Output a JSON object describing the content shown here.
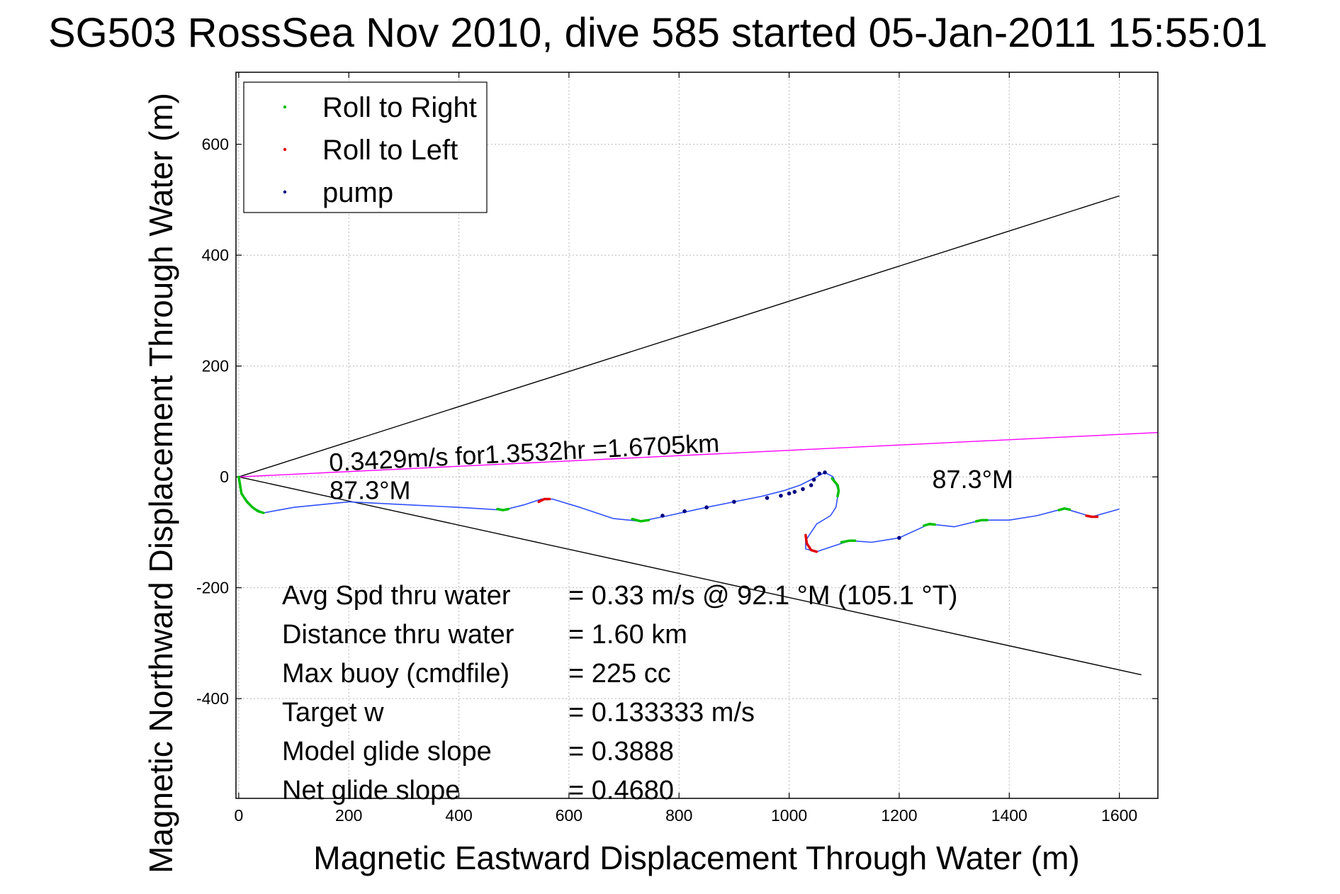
{
  "chart_data": {
    "type": "line",
    "title": "SG503 RossSea Nov 2010, dive 585 started 05-Jan-2011 15:55:01",
    "xlabel": "Magnetic Eastward Displacement Through Water (m)",
    "ylabel": "Magnetic Northward Displacement Through Water (m)",
    "xlim": [
      -5,
      1670
    ],
    "ylim": [
      -580,
      730
    ],
    "xticks": [
      0,
      200,
      400,
      600,
      800,
      1000,
      1200,
      1400,
      1600
    ],
    "yticks": [
      -400,
      -200,
      0,
      200,
      400,
      600
    ],
    "grid": true,
    "legend": {
      "placement": "top-left",
      "entries": [
        {
          "name": "Roll to Right",
          "color": "#00c000"
        },
        {
          "name": "Roll to Left",
          "color": "#e00000"
        },
        {
          "name": "pump",
          "color": "#000080"
        }
      ]
    },
    "track": {
      "color": "#3050ff",
      "x": [
        0,
        5,
        25,
        45,
        100,
        200,
        300,
        400,
        480,
        520,
        550,
        570,
        620,
        680,
        730,
        780,
        850,
        900,
        950,
        990,
        1020,
        1050,
        1065,
        1080,
        1090,
        1085,
        1075,
        1050,
        1030,
        1030,
        1050,
        1080,
        1110,
        1150,
        1200,
        1255,
        1300,
        1350,
        1400,
        1450,
        1500,
        1550,
        1600
      ],
      "y": [
        0,
        -30,
        -55,
        -65,
        -55,
        -45,
        -50,
        -55,
        -60,
        -50,
        -40,
        -40,
        -55,
        -75,
        -80,
        -70,
        -55,
        -45,
        -35,
        -25,
        -15,
        0,
        8,
        0,
        -25,
        -55,
        -70,
        -85,
        -115,
        -130,
        -135,
        -125,
        -115,
        -118,
        -110,
        -85,
        -90,
        -78,
        -78,
        -70,
        -57,
        -72,
        -58
      ]
    },
    "roll_right": {
      "color": "#00c000",
      "segments": [
        {
          "x": [
            0,
            5,
            15,
            25,
            35,
            45
          ],
          "y": [
            0,
            -30,
            -45,
            -55,
            -62,
            -65
          ]
        },
        {
          "x": [
            470,
            480,
            490
          ],
          "y": [
            -58,
            -60,
            -58
          ]
        },
        {
          "x": [
            715,
            730,
            745
          ],
          "y": [
            -76,
            -80,
            -78
          ]
        },
        {
          "x": [
            1078,
            1088,
            1090,
            1088
          ],
          "y": [
            -3,
            -15,
            -25,
            -35
          ]
        },
        {
          "x": [
            1095,
            1110,
            1120
          ],
          "y": [
            -118,
            -115,
            -115
          ]
        },
        {
          "x": [
            1245,
            1255,
            1265
          ],
          "y": [
            -88,
            -85,
            -86
          ]
        },
        {
          "x": [
            1340,
            1350,
            1360
          ],
          "y": [
            -80,
            -78,
            -78
          ]
        },
        {
          "x": [
            1490,
            1500,
            1510
          ],
          "y": [
            -60,
            -57,
            -59
          ]
        }
      ]
    },
    "roll_left": {
      "color": "#e00000",
      "segments": [
        {
          "x": [
            545,
            555,
            565
          ],
          "y": [
            -45,
            -40,
            -40
          ]
        },
        {
          "x": [
            1030,
            1032,
            1040,
            1050
          ],
          "y": [
            -105,
            -120,
            -132,
            -135
          ]
        },
        {
          "x": [
            1540,
            1550,
            1560
          ],
          "y": [
            -70,
            -72,
            -72
          ]
        }
      ]
    },
    "pump_points": {
      "color": "#000080",
      "x": [
        770,
        810,
        850,
        900,
        960,
        985,
        1000,
        1010,
        1025,
        1040,
        1045,
        1055,
        1065,
        1200
      ],
      "y": [
        -70,
        -62,
        -55,
        -45,
        -38,
        -34,
        -30,
        -27,
        -22,
        -15,
        -5,
        6,
        8,
        -110
      ]
    },
    "lines": [
      {
        "color": "#000000",
        "x": [
          0,
          1600
        ],
        "y": [
          0,
          507
        ]
      },
      {
        "color": "#000000",
        "x": [
          0,
          1640
        ],
        "y": [
          0,
          -357
        ]
      },
      {
        "color": "#ff00ff",
        "x": [
          0,
          1670
        ],
        "y": [
          0,
          80
        ]
      }
    ],
    "annotations": [
      {
        "text": "0.3429m/s for1.3532hr =1.6705km",
        "x": 165,
        "y": 10,
        "rotate": -2.9
      },
      {
        "text": "87.3°M",
        "x": 165,
        "y": -40,
        "rotate": 0
      },
      {
        "text": "87.3°M",
        "x": 1260,
        "y": -20,
        "rotate": 0
      }
    ],
    "stats": [
      {
        "label": "Avg Spd thru water",
        "value": "=  0.33 m/s @  92.1 °M (105.1 °T)"
      },
      {
        "label": "Distance thru water",
        "value": "=  1.60 km"
      },
      {
        "label": "Max buoy (cmdfile)",
        "value": "= 225 cc"
      },
      {
        "label": "Target w",
        "value": "= 0.133333 m/s"
      },
      {
        "label": "Model glide slope",
        "value": "= 0.3888"
      },
      {
        "label": "Net glide slope",
        "value": "= 0.4680"
      }
    ]
  }
}
